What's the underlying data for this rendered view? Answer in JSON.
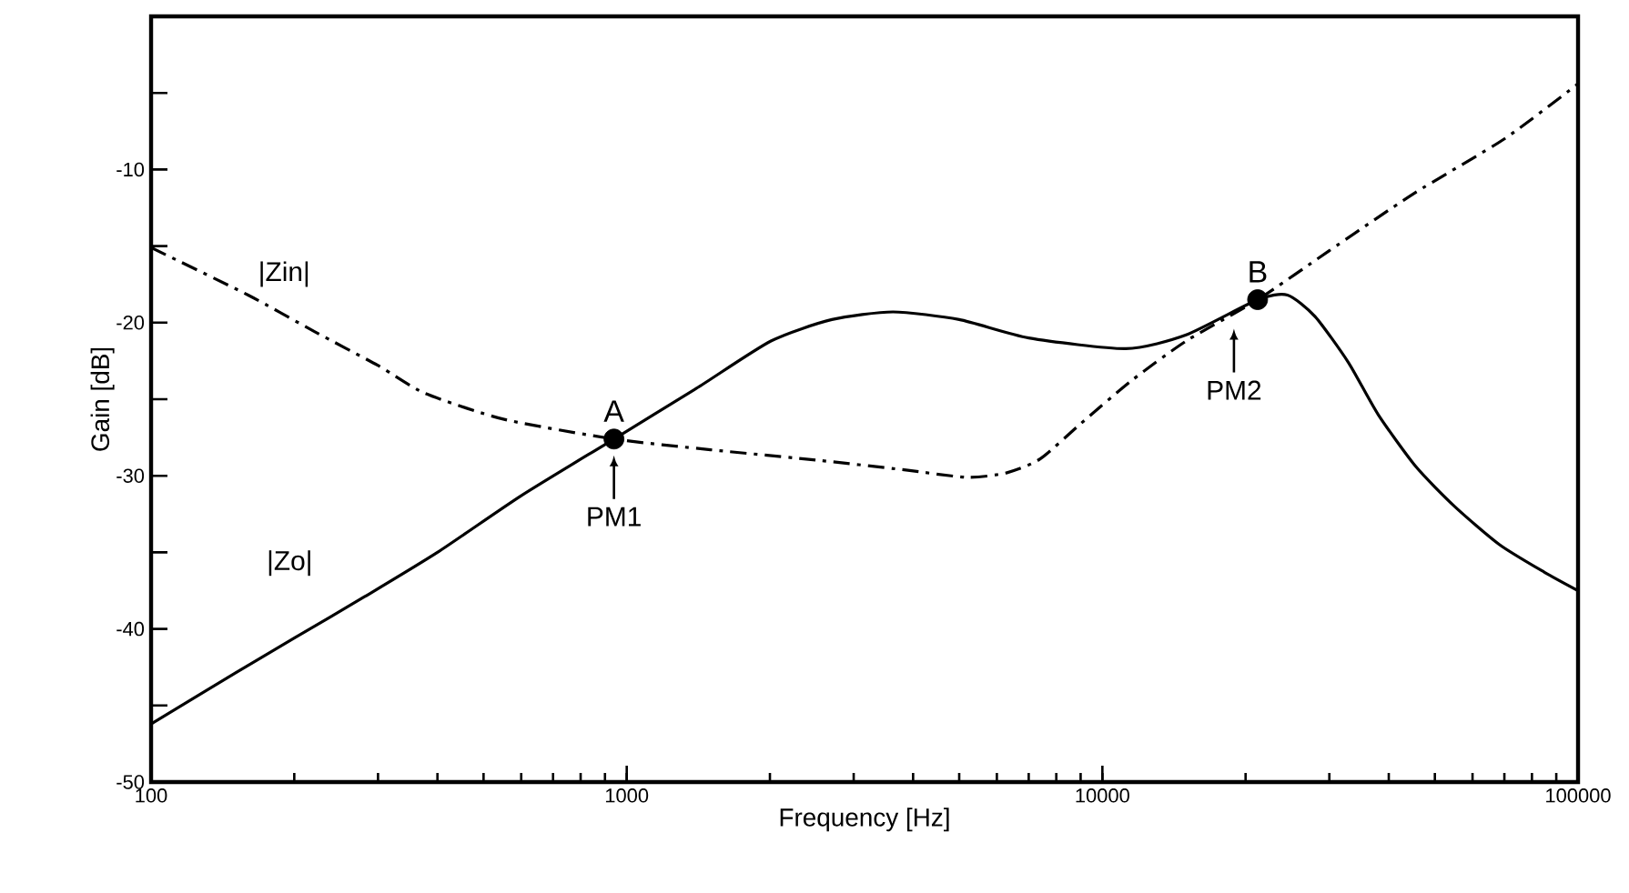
{
  "chart_data": {
    "type": "line",
    "xlabel": "Frequency [Hz]",
    "ylabel": "Gain [dB]",
    "log": "x",
    "xlim": [
      100,
      100000
    ],
    "xticks": [
      100,
      1000,
      10000,
      100000
    ],
    "ylim": [
      -50,
      0
    ],
    "yticks": [
      -50,
      {
        "value": -45,
        "label": null
      },
      -40,
      {
        "value": -35,
        "label": null
      },
      -30,
      {
        "value": -25,
        "label": null
      },
      -20,
      {
        "value": -15,
        "label": null
      },
      -10,
      {
        "value": -5,
        "label": null
      }
    ],
    "grid": false,
    "legend": false,
    "series": [
      {
        "name": "|Zin|",
        "color": "#000000",
        "line_style": "dashdot",
        "x": [
          100,
          160,
          221,
          300,
          376,
          550,
          940,
          1500,
          2550,
          3800,
          5200,
          6300,
          7400,
          9000,
          11500,
          15000,
          21200,
          30000,
          45000,
          70000,
          100000
        ],
        "values": [
          -15.1,
          -18.2,
          -20.6,
          -22.8,
          -24.6,
          -26.3,
          -27.6,
          -28.3,
          -29.0,
          -29.6,
          -30.1,
          -29.8,
          -28.9,
          -26.6,
          -23.8,
          -21.2,
          -18.5,
          -15.3,
          -11.6,
          -8.0,
          -4.4
        ]
      },
      {
        "name": "|Zo|",
        "color": "#000000",
        "line_style": "solid",
        "x": [
          100,
          150,
          200,
          281,
          400,
          600,
          940,
          1400,
          2010,
          2700,
          3630,
          5000,
          7000,
          11200,
          15000,
          21200,
          24500,
          28000,
          32900,
          38000,
          45600,
          55000,
          68400,
          85000,
          100000
        ],
        "values": [
          -46.2,
          -42.9,
          -40.6,
          -37.9,
          -35.0,
          -31.3,
          -27.6,
          -24.3,
          -21.2,
          -19.8,
          -19.3,
          -19.8,
          -21.0,
          -21.7,
          -20.8,
          -18.5,
          -18.2,
          -19.6,
          -22.6,
          -26.0,
          -29.4,
          -32.0,
          -34.5,
          -36.3,
          -37.5
        ]
      },
      {
        "type": "scatter",
        "marker": "circle",
        "color": "#000000",
        "x": [
          940,
          21200
        ],
        "values": [
          -27.6,
          -18.5
        ]
      }
    ],
    "annotations": [
      "A",
      "B",
      "PM1",
      "PM2"
    ]
  }
}
